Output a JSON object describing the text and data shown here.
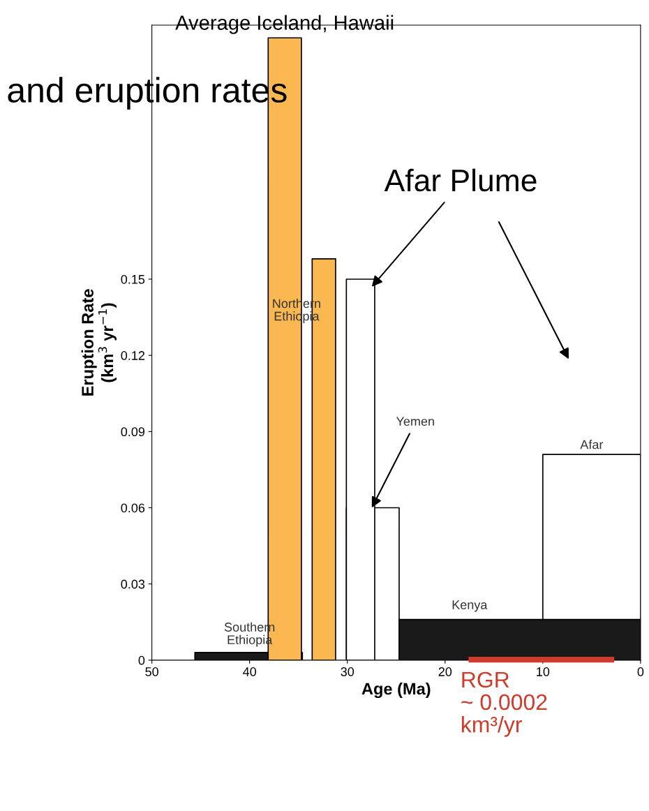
{
  "chart_data": {
    "type": "area",
    "title": "and eruption rates",
    "xlabel": "Age (Ma)",
    "ylabel": "Eruption Rate\n(km$^{3}$ yr$^{−1}$)",
    "xlim": [
      50,
      0
    ],
    "xticks": [
      50,
      40,
      30,
      20,
      10,
      0
    ],
    "ylim": [
      0,
      0.25
    ],
    "yticks": [
      0,
      0.03,
      0.06,
      0.09,
      0.12,
      0.15
    ],
    "grid": false,
    "legend": false,
    "series": [
      {
        "color": "#1a1a1a",
        "x": [
          45.6,
          34.6
        ],
        "values": [
          0.003,
          0.003
        ]
      },
      {
        "color": "#ffffff",
        "x": [
          30.1,
          24.7
        ],
        "values": [
          0.06,
          0.06
        ]
      },
      {
        "color": "#ffffff",
        "x": [
          30.1,
          27.2
        ],
        "values": [
          0.15,
          0.15
        ]
      },
      {
        "color": "#ffffff",
        "x": [
          10,
          0
        ],
        "values": [
          0.081,
          0.081
        ]
      },
      {
        "color": "#1a1a1a",
        "x": [
          24.7,
          0
        ],
        "values": [
          0.016,
          0.016
        ]
      },
      {
        "color": "#fbb850",
        "x": [
          38.1,
          34.7
        ],
        "values": [
          0.245,
          0.245
        ]
      },
      {
        "color": "#fbb850",
        "x": [
          33.6,
          31.2
        ],
        "values": [
          0.158,
          0.158
        ]
      },
      {
        "type": "line",
        "color": "#d03a2a",
        "x": [
          17.6,
          2.7
        ],
        "values": [
          0.0002,
          0.0002
        ]
      }
    ],
    "annotations": [
      "Northern\nEthiopia",
      {
        "text": "Southern\nEthiopia",
        "x": 40,
        "y": 0.003
      },
      {
        "text": "Yemen",
        "x": 27.5,
        "y": 0.06
      },
      {
        "text": "Kenya",
        "x": 17.5,
        "y": 0.016
      },
      {
        "text": "Afar",
        "x": 5,
        "y": 0.081
      },
      {
        "text": "Average Iceland, Hawaii",
        "x": 36.4,
        "y": 0.245
      },
      {
        "text": "Afar Plume",
        "x": 27.5,
        "y": 0.147
      },
      {
        "text": "RGR\n~ 0.0002\nkm³/yr",
        "x": 10,
        "y": 0.0002
      }
    ]
  }
}
